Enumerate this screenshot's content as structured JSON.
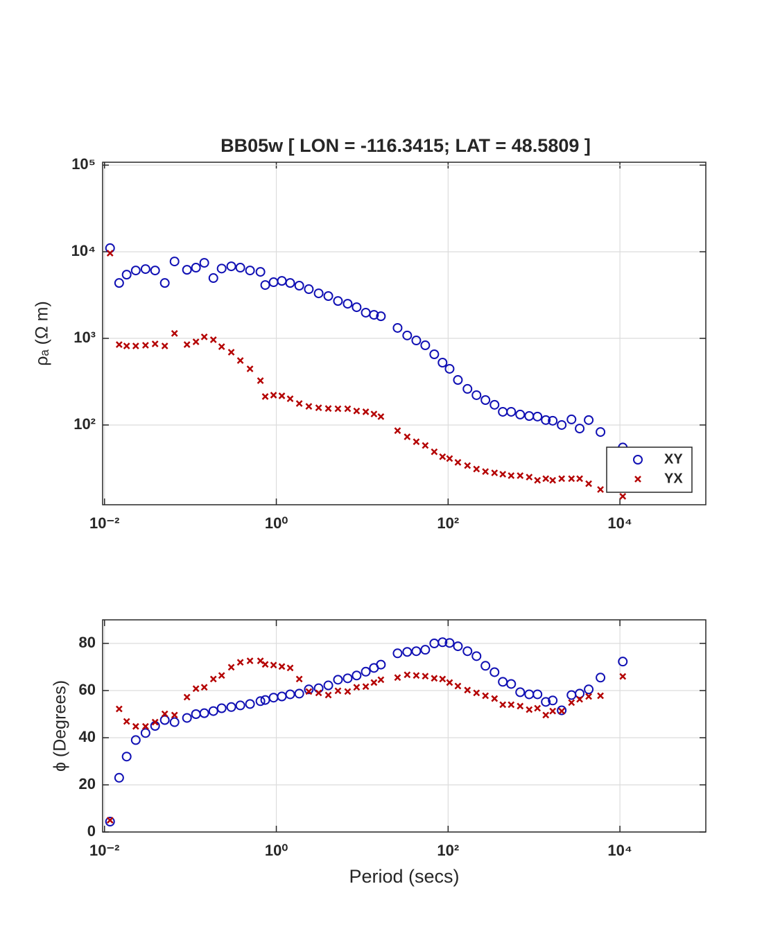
{
  "chart_data": [
    {
      "type": "scatter",
      "title": "BB05w [ LON = -116.3415; LAT = 48.5809 ]",
      "y_label": "ρₐ (Ω m)",
      "x_scale": "log",
      "y_scale": "log",
      "grid": true,
      "legend": "southeast",
      "xlim": [
        0.0095,
        100000
      ],
      "ylim": [
        12,
        108000
      ],
      "xticks": [
        {
          "value": 0.01,
          "label": "10⁻²"
        },
        {
          "value": 1,
          "label": "10⁰"
        },
        {
          "value": 100,
          "label": "10²"
        },
        {
          "value": 10000,
          "label": "10⁴"
        }
      ],
      "yticks": [
        {
          "value": 100,
          "label": "10²"
        },
        {
          "value": 1000,
          "label": "10³"
        },
        {
          "value": 10000,
          "label": "10⁴"
        },
        {
          "value": 100000,
          "label": "10⁵"
        }
      ],
      "x": [
        0.0116,
        0.0148,
        0.0181,
        0.0231,
        0.03,
        0.0388,
        0.0503,
        0.0653,
        0.0912,
        0.116,
        0.145,
        0.185,
        0.231,
        0.299,
        0.381,
        0.494,
        0.653,
        0.743,
        0.929,
        1.16,
        1.45,
        1.85,
        2.39,
        3.11,
        4.03,
        5.22,
        6.77,
        8.61,
        11.0,
        13.7,
        16.5,
        25.8,
        33.4,
        42.6,
        54.2,
        69.0,
        86.1,
        104,
        130,
        168,
        214,
        272,
        347,
        433,
        542,
        690,
        879,
        1097,
        1371,
        1650,
        2100,
        2730,
        3400,
        4330,
        5940,
        10800
      ],
      "series": [
        {
          "name": "XY",
          "color": "#1010b4",
          "marker": "o",
          "values": [
            11000,
            4360,
            5440,
            6080,
            6310,
            6080,
            4360,
            7730,
            6190,
            6550,
            7450,
            4970,
            6400,
            6790,
            6550,
            6080,
            5860,
            4130,
            4450,
            4610,
            4360,
            4060,
            3700,
            3310,
            3080,
            2700,
            2510,
            2290,
            1980,
            1870,
            1800,
            1320,
            1080,
            946,
            832,
            655,
            525,
            445,
            331,
            261,
            221,
            194,
            171,
            142,
            142,
            132,
            127,
            125,
            114,
            112,
            100,
            116,
            91,
            114,
            83,
            55
          ]
        },
        {
          "name": "YX",
          "color": "#b40000",
          "marker": "x",
          "values": [
            9640,
            847,
            817,
            817,
            832,
            863,
            817,
            1140,
            847,
            912,
            1040,
            964,
            802,
            692,
            555,
            445,
            325,
            213,
            221,
            217,
            201,
            177,
            164,
            158,
            155,
            154,
            154,
            145,
            142,
            134,
            125,
            86,
            73,
            64,
            58,
            49,
            43,
            41,
            37,
            34,
            31,
            29,
            28,
            27,
            26,
            26,
            25,
            23,
            24,
            23,
            24,
            24,
            24,
            21,
            18,
            15
          ]
        }
      ]
    },
    {
      "type": "scatter",
      "y_label": "ϕ (Degrees)",
      "x_label": "Period (secs)",
      "x_scale": "log",
      "y_scale": "linear",
      "grid": true,
      "xlim": [
        0.0095,
        100000
      ],
      "ylim": [
        0,
        90
      ],
      "xticks": [
        {
          "value": 0.01,
          "label": "10⁻²"
        },
        {
          "value": 1,
          "label": "10⁰"
        },
        {
          "value": 100,
          "label": "10²"
        },
        {
          "value": 10000,
          "label": "10⁴"
        }
      ],
      "yticks": [
        0,
        20,
        40,
        60,
        80
      ],
      "x": [
        0.0116,
        0.0148,
        0.0181,
        0.0231,
        0.03,
        0.0388,
        0.0503,
        0.0653,
        0.0912,
        0.116,
        0.145,
        0.185,
        0.231,
        0.299,
        0.381,
        0.494,
        0.653,
        0.743,
        0.929,
        1.16,
        1.45,
        1.85,
        2.39,
        3.11,
        4.03,
        5.22,
        6.77,
        8.61,
        11.0,
        13.7,
        16.5,
        25.8,
        33.4,
        42.6,
        54.2,
        69.0,
        86.1,
        104,
        130,
        168,
        214,
        272,
        347,
        433,
        542,
        690,
        879,
        1097,
        1371,
        1650,
        2100,
        2730,
        3400,
        4330,
        5940,
        10800
      ],
      "series": [
        {
          "name": "XY",
          "color": "#1010b4",
          "marker": "o",
          "values": [
            4.4,
            23,
            32,
            39,
            42,
            45,
            47.5,
            46.6,
            48.4,
            50,
            50.4,
            51.3,
            52.5,
            53,
            53.7,
            54.3,
            55.5,
            56,
            57,
            57.5,
            58.4,
            58.7,
            60.5,
            61,
            62.2,
            64.6,
            65.2,
            66.4,
            68,
            69.6,
            71,
            75.8,
            76.4,
            76.7,
            77.3,
            80,
            80.5,
            80.2,
            78.8,
            76.7,
            74.6,
            70.5,
            67.8,
            63.7,
            62.8,
            59.3,
            58.4,
            58.4,
            55.2,
            55.8,
            51.6,
            58.1,
            58.7,
            60.5,
            65.5,
            72.3
          ]
        },
        {
          "name": "YX",
          "color": "#b40000",
          "marker": "x",
          "values": [
            5,
            52.2,
            46.9,
            44.8,
            44.8,
            46.6,
            50.1,
            49.6,
            57.2,
            60.8,
            61.4,
            64.9,
            66.4,
            69.9,
            72,
            72.6,
            72.6,
            71.1,
            70.8,
            70.2,
            69.6,
            64.9,
            59.6,
            59,
            58.1,
            59.9,
            59.6,
            61.4,
            61.7,
            63.4,
            64.6,
            65.5,
            66.7,
            66.4,
            66.1,
            65.2,
            64.9,
            63.4,
            61.9,
            60.2,
            59,
            57.8,
            56.6,
            54,
            54,
            53.4,
            51.9,
            52.5,
            49.6,
            51.3,
            51.3,
            54.9,
            56.3,
            57.5,
            57.8,
            66
          ]
        }
      ]
    }
  ]
}
